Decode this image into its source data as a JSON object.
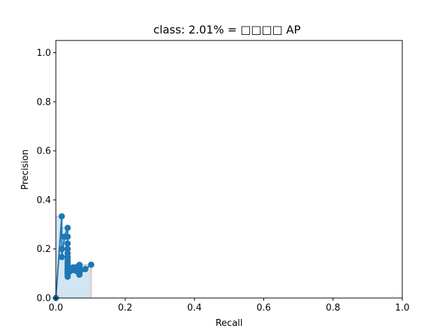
{
  "chart_data": {
    "type": "line",
    "title": "class: 2.01% = □□□□ AP",
    "xlabel": "Recall",
    "ylabel": "Precision",
    "xlim": [
      0.0,
      1.0
    ],
    "ylim": [
      0.0,
      1.05
    ],
    "xticks": [
      "0.0",
      "0.2",
      "0.4",
      "0.6",
      "0.8",
      "1.0"
    ],
    "yticks": [
      "0.0",
      "0.2",
      "0.4",
      "0.6",
      "0.8",
      "1.0"
    ],
    "grid": false,
    "colors": {
      "line": "#1f77b4",
      "fill": "#a6cbe6",
      "fill_edge": "#e8a0a8"
    },
    "series": [
      {
        "x": [
          0.0,
          0.017,
          0.017,
          0.017,
          0.025,
          0.034,
          0.034,
          0.034,
          0.034,
          0.034,
          0.034,
          0.034,
          0.034,
          0.034,
          0.034,
          0.034,
          0.034,
          0.034,
          0.034,
          0.034,
          0.034,
          0.042,
          0.051,
          0.051,
          0.059,
          0.059,
          0.068,
          0.068,
          0.068,
          0.068,
          0.068,
          0.068,
          0.085,
          0.102
        ],
        "y": [
          0.0,
          0.333,
          0.2,
          0.167,
          0.25,
          0.286,
          0.25,
          0.222,
          0.2,
          0.182,
          0.167,
          0.154,
          0.143,
          0.133,
          0.125,
          0.118,
          0.111,
          0.105,
          0.1,
          0.095,
          0.087,
          0.11,
          0.125,
          0.115,
          0.11,
          0.125,
          0.135,
          0.128,
          0.12,
          0.11,
          0.102,
          0.095,
          0.118,
          0.136
        ]
      }
    ],
    "area": {
      "x": [
        0.0,
        0.017,
        0.017,
        0.034,
        0.034,
        0.068,
        0.068,
        0.102,
        0.102
      ],
      "y": [
        0.333,
        0.333,
        0.286,
        0.286,
        0.136,
        0.136,
        0.136,
        0.136,
        0.0
      ]
    }
  }
}
